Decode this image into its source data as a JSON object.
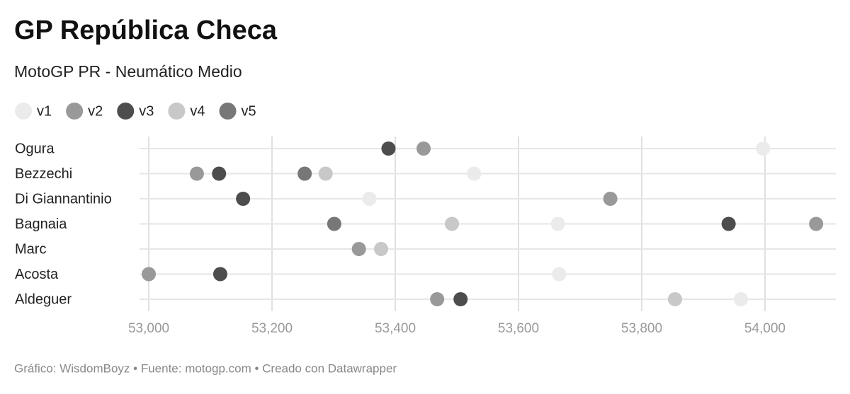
{
  "chart_data": {
    "type": "dot",
    "title": "GP República Checa",
    "subtitle": "MotoGP PR - Neumático Medio",
    "note": "Gráfico: WisdomBoyz • Fuente: motogp.com • Creado con Datawrapper",
    "categories": [
      "Ogura",
      "Bezzechi",
      "Di Giannantinio",
      "Bagnaia",
      "Marc",
      "Acosta",
      "Aldeguer"
    ],
    "series": [
      {
        "name": "v1",
        "color": "#ebebeb",
        "values": [
          53997,
          53528,
          53358,
          53664,
          null,
          53666,
          53961
        ]
      },
      {
        "name": "v2",
        "color": "#999999",
        "values": [
          53446,
          53078,
          53749,
          54083,
          53341,
          53000,
          53468
        ]
      },
      {
        "name": "v3",
        "color": "#4d4d4d",
        "values": [
          53389,
          53114,
          53153,
          53941,
          null,
          53116,
          53506
        ]
      },
      {
        "name": "v4",
        "color": "#c8c8c8",
        "values": [
          null,
          53287,
          null,
          53492,
          53377,
          null,
          53854
        ]
      },
      {
        "name": "v5",
        "color": "#777777",
        "values": [
          null,
          53253,
          null,
          53301,
          null,
          null,
          null
        ]
      }
    ],
    "xlim": [
      52985,
      54115
    ],
    "xticks": [
      {
        "value": 53000,
        "label": "53,000"
      },
      {
        "value": 53200,
        "label": "53,200"
      },
      {
        "value": 53400,
        "label": "53,400"
      },
      {
        "value": 53600,
        "label": "53,600"
      },
      {
        "value": 53800,
        "label": "53,800"
      },
      {
        "value": 54000,
        "label": "54,000"
      }
    ],
    "grid": true
  }
}
